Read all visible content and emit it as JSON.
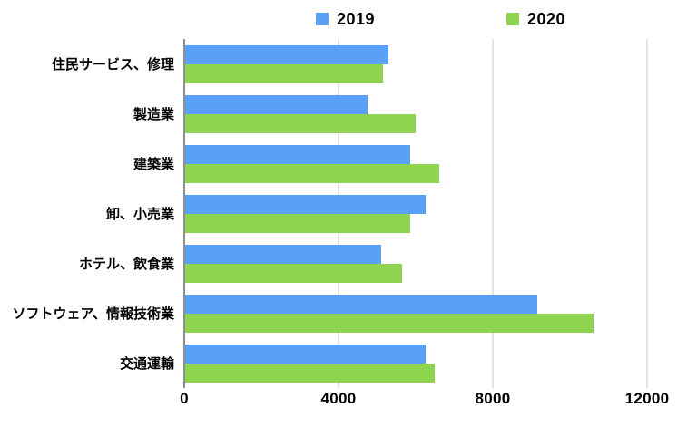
{
  "chart_data": {
    "type": "bar",
    "orientation": "horizontal",
    "title": "",
    "xlabel": "",
    "ylabel": "",
    "categories": [
      "住民サービス、修理",
      "製造業",
      "建築業",
      "卸、小売業",
      "ホテル、飲食業",
      "ソフトウェア、情報技術業",
      "交通運輸"
    ],
    "series": [
      {
        "name": "2019",
        "color": "#58A0F8",
        "values": [
          5300,
          4750,
          5850,
          6250,
          5100,
          9150,
          6250
        ]
      },
      {
        "name": "2020",
        "color": "#8ED44E",
        "values": [
          5150,
          6000,
          6600,
          5850,
          5650,
          10600,
          6500
        ]
      }
    ],
    "xlim": [
      0,
      12000
    ],
    "x_ticks": [
      0,
      4000,
      8000,
      12000
    ],
    "legend_position": "top",
    "grid": true
  },
  "colors": {
    "background": "#ffffff",
    "axis_line": "#8f8f8f",
    "gridline": "#e3e3e3",
    "text": "#000000"
  }
}
